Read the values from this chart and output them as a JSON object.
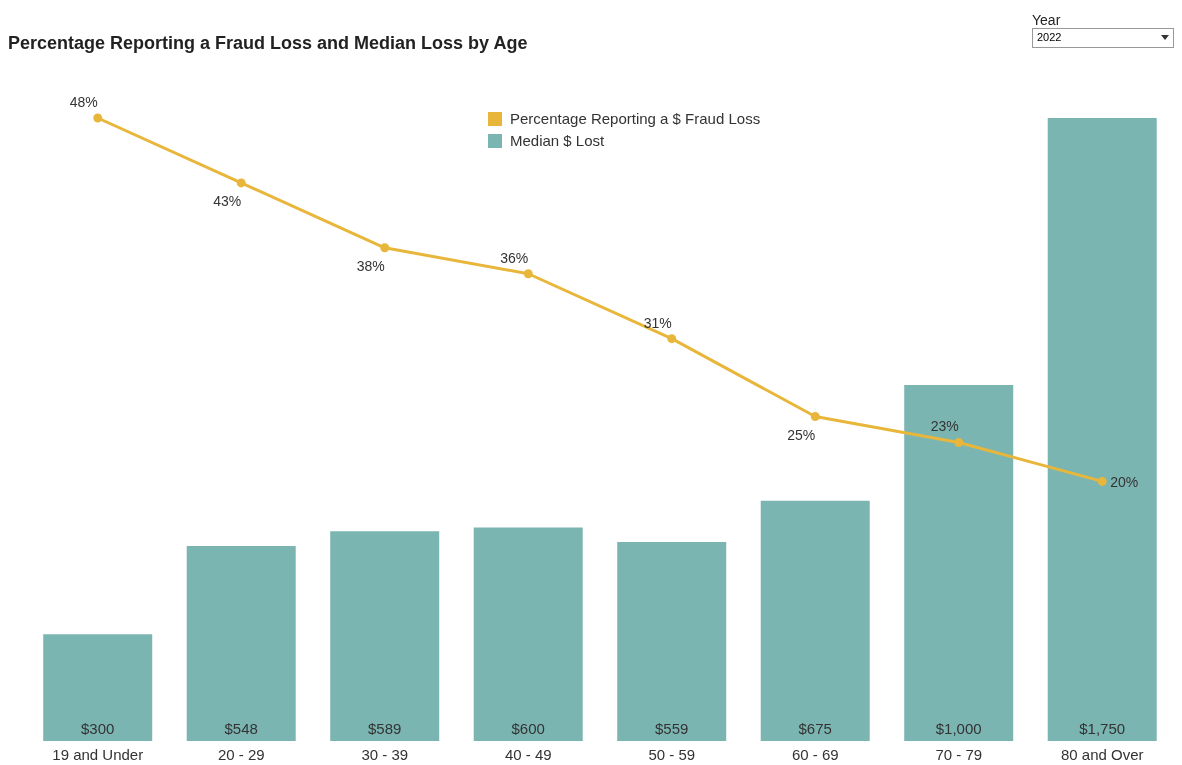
{
  "chart_data": {
    "type": "bar",
    "title": "Percentage Reporting a Fraud Loss and Median Loss by Age",
    "annotations": [
      "Year",
      "2022"
    ],
    "categories": [
      "19 and Under",
      "20 - 29",
      "30 - 39",
      "40 - 49",
      "50 - 59",
      "60 - 69",
      "70 - 79",
      "80 and Over"
    ],
    "series": [
      {
        "name": "Percentage Reporting a $ Fraud Loss",
        "type": "line",
        "axis": "y2",
        "color": "#e8b63a",
        "values": [
          48,
          43,
          38,
          36,
          31,
          25,
          23,
          20
        ],
        "value_labels": [
          "48%",
          "43%",
          "38%",
          "36%",
          "31%",
          "25%",
          "23%",
          "20%"
        ]
      },
      {
        "name": "Median $ Lost",
        "color": "#7bb5b2",
        "values": [
          300,
          548,
          589,
          600,
          559,
          675,
          1000,
          1750
        ],
        "value_labels": [
          "$300",
          "$548",
          "$589",
          "$600",
          "$559",
          "$675",
          "$1,000",
          "$1,750"
        ]
      }
    ],
    "marker": "circle",
    "legend": "top"
  }
}
